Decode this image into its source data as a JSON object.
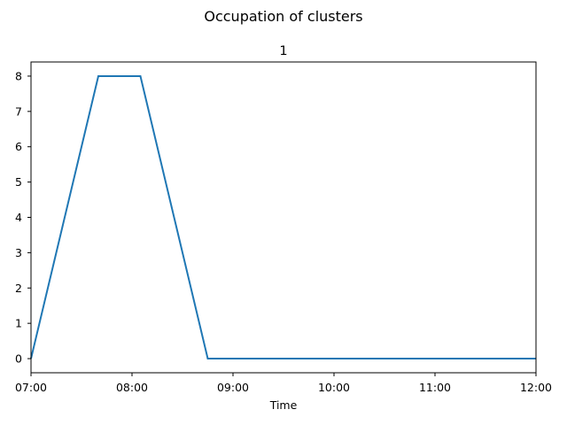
{
  "chart_data": {
    "type": "line",
    "title": "Occupation of clusters",
    "subtitle": "1",
    "xlabel": "Time",
    "ylabel": "",
    "x_ticks": [
      "07:00",
      "08:00",
      "09:00",
      "10:00",
      "11:00",
      "12:00"
    ],
    "y_ticks": [
      "0",
      "1",
      "2",
      "3",
      "4",
      "5",
      "6",
      "7",
      "8"
    ],
    "xlim": [
      "07:00",
      "12:00"
    ],
    "ylim": [
      -0.4,
      8.4
    ],
    "grid": false,
    "series": [
      {
        "color": "#1f77b4",
        "x": [
          "07:00",
          "07:40",
          "08:05",
          "08:45",
          "12:00"
        ],
        "y": [
          0,
          8,
          8,
          0,
          0
        ]
      }
    ]
  }
}
